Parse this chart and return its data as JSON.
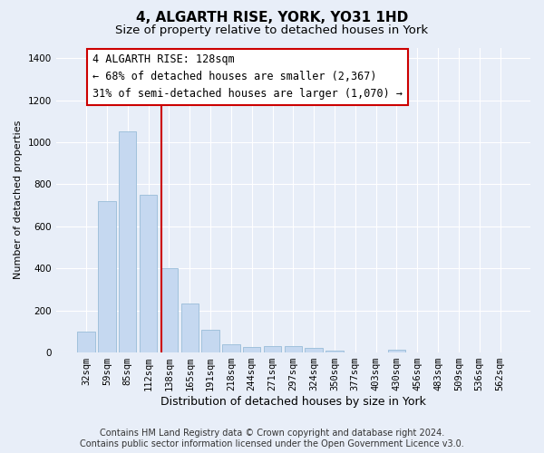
{
  "title": "4, ALGARTH RISE, YORK, YO31 1HD",
  "subtitle": "Size of property relative to detached houses in York",
  "xlabel": "Distribution of detached houses by size in York",
  "ylabel": "Number of detached properties",
  "footer_line1": "Contains HM Land Registry data © Crown copyright and database right 2024.",
  "footer_line2": "Contains public sector information licensed under the Open Government Licence v3.0.",
  "categories": [
    "32sqm",
    "59sqm",
    "85sqm",
    "112sqm",
    "138sqm",
    "165sqm",
    "191sqm",
    "218sqm",
    "244sqm",
    "271sqm",
    "297sqm",
    "324sqm",
    "350sqm",
    "377sqm",
    "403sqm",
    "430sqm",
    "456sqm",
    "483sqm",
    "509sqm",
    "536sqm",
    "562sqm"
  ],
  "values": [
    100,
    720,
    1050,
    750,
    400,
    235,
    110,
    40,
    25,
    30,
    30,
    20,
    10,
    0,
    0,
    15,
    0,
    0,
    0,
    0,
    0
  ],
  "bar_color": "#c5d8f0",
  "bar_edge_color": "#98bcd8",
  "vline_color": "#cc0000",
  "annotation_line1": "4 ALGARTH RISE: 128sqm",
  "annotation_line2": "← 68% of detached houses are smaller (2,367)",
  "annotation_line3": "31% of semi-detached houses are larger (1,070) →",
  "ylim": [
    0,
    1450
  ],
  "yticks": [
    0,
    200,
    400,
    600,
    800,
    1000,
    1200,
    1400
  ],
  "background_color": "#e8eef8",
  "plot_bg_color": "#e8eef8",
  "title_fontsize": 11,
  "subtitle_fontsize": 9.5,
  "xlabel_fontsize": 9,
  "ylabel_fontsize": 8,
  "tick_fontsize": 7.5,
  "annotation_fontsize": 8.5,
  "footer_fontsize": 7
}
